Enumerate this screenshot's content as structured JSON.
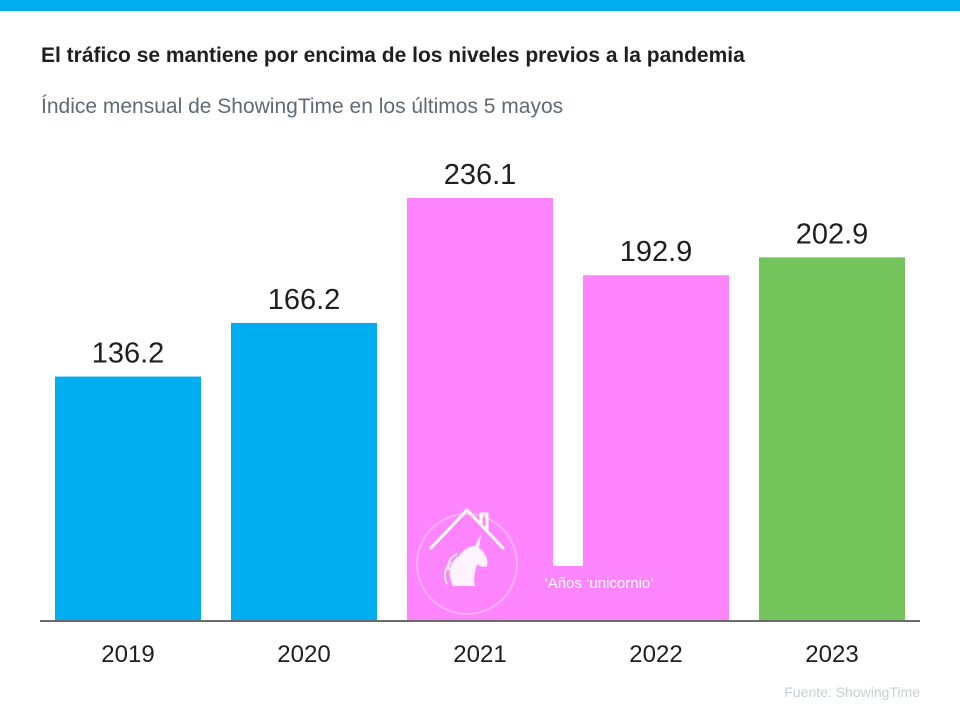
{
  "header": {
    "title": "El tráfico se mantiene por encima de los niveles previos a la pandemia",
    "subtitle": "Índice mensual de ShowingTime en los últimos 5 mayos"
  },
  "footer": {
    "source": "Fuente:  ShowingTime"
  },
  "colors": {
    "top_bar": "#00AEEF",
    "blue": "#00AEEF",
    "pink": "#FF85FF",
    "green": "#73C45A"
  },
  "chart_data": {
    "type": "bar",
    "categories": [
      "2019",
      "2020",
      "2021",
      "2022",
      "2023"
    ],
    "values": [
      136.2,
      166.2,
      236.1,
      192.9,
      202.9
    ],
    "value_labels": [
      "136.2",
      "166.2",
      "236.1",
      "192.9",
      "202.9"
    ],
    "bar_colors": [
      "#00AEEF",
      "#00AEEF",
      "#FF85FF",
      "#FF85FF",
      "#73C45A"
    ],
    "ylim": [
      0,
      236.1
    ],
    "grid": false,
    "legend": "none",
    "annotation": {
      "text": "‘Años ‘unicornio’",
      "icon": "unicorn-house-icon",
      "spans": [
        "2021",
        "2022"
      ]
    }
  }
}
